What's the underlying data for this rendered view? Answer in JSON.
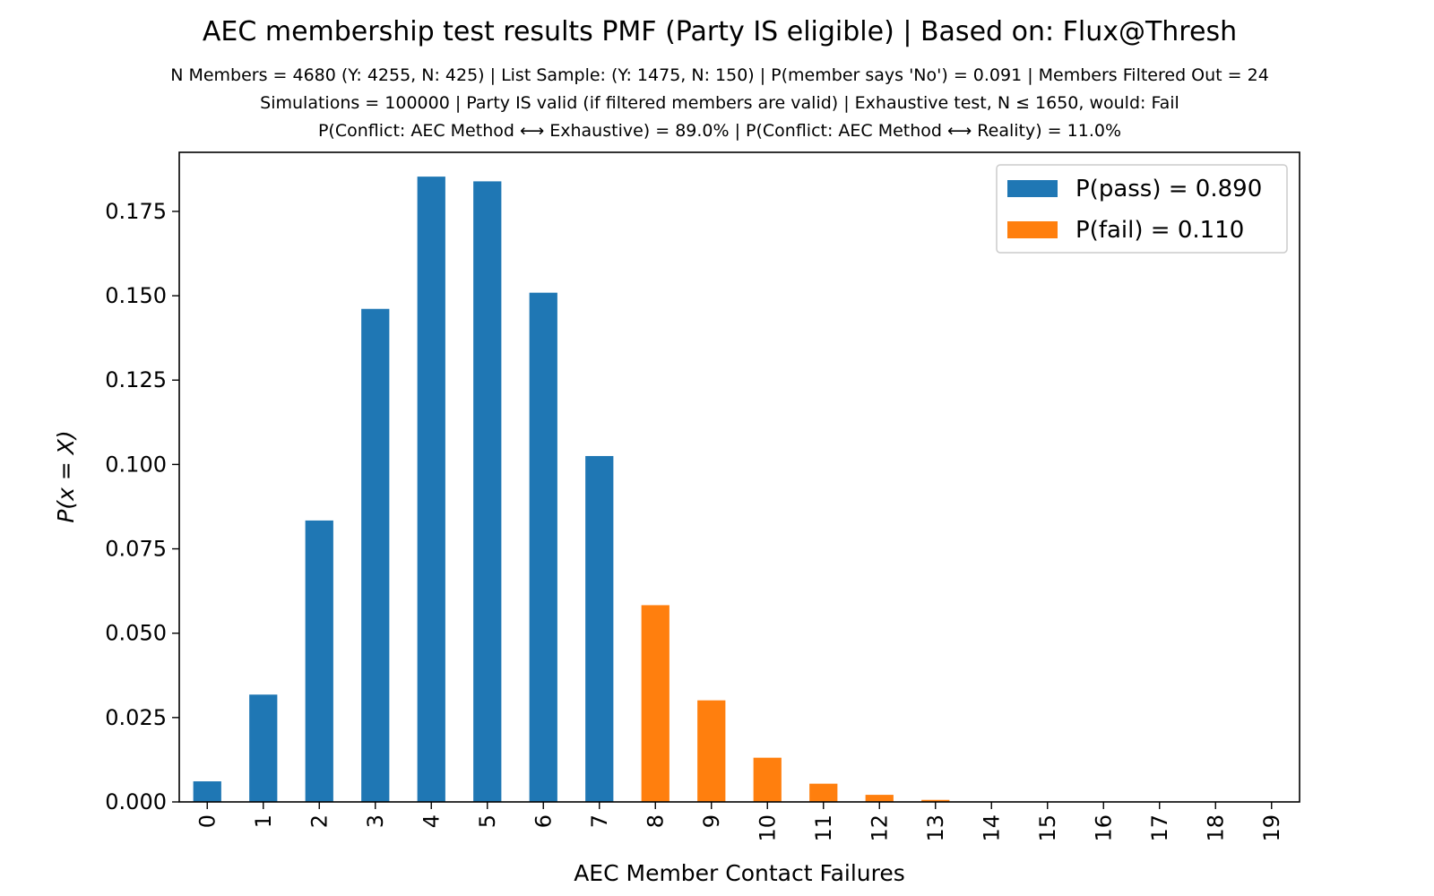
{
  "chart_data": {
    "type": "bar",
    "title": "AEC membership test results PMF (Party IS eligible) | Based on: Flux@Thresh",
    "subtitle_lines": [
      "N Members = 4680 (Y: 4255, N: 425) | List Sample: (Y: 1475, N: 150) | P(member says 'No') = 0.091 | Members Filtered Out = 24",
      "Simulations = 100000 | Party IS valid (if filtered members are valid) | Exhaustive test, N ≤ 1650, would: Fail",
      "P(Conflict: AEC Method ⟷ Exhaustive) = 89.0% | P(Conflict: AEC Method ⟷ Reality) = 11.0%"
    ],
    "xlabel": "AEC Member Contact Failures",
    "ylabel": "P(x = X)",
    "categories": [
      "0",
      "1",
      "2",
      "3",
      "4",
      "5",
      "6",
      "7",
      "8",
      "9",
      "10",
      "11",
      "12",
      "13",
      "14",
      "15",
      "16",
      "17",
      "18",
      "19"
    ],
    "values": [
      0.0061,
      0.0318,
      0.0834,
      0.1461,
      0.1853,
      0.1839,
      0.1509,
      0.1025,
      0.0583,
      0.0301,
      0.0131,
      0.0054,
      0.0021,
      0.0006,
      0.0001,
      0.0,
      0.0,
      0.0,
      0.0,
      0.0
    ],
    "bar_series": [
      "pass",
      "pass",
      "pass",
      "pass",
      "pass",
      "pass",
      "pass",
      "pass",
      "fail",
      "fail",
      "fail",
      "fail",
      "fail",
      "fail",
      "fail",
      "fail",
      "fail",
      "fail",
      "fail",
      "fail"
    ],
    "ylim": [
      0,
      0.1925
    ],
    "yticks": [
      "0.000",
      "0.025",
      "0.050",
      "0.075",
      "0.100",
      "0.125",
      "0.150",
      "0.175"
    ],
    "ytick_values": [
      0,
      0.025,
      0.05,
      0.075,
      0.1,
      0.125,
      0.15,
      0.175
    ],
    "series": [
      {
        "name": "P(pass) = 0.890",
        "color": "#1f77b4"
      },
      {
        "name": "P(fail) = 0.110",
        "color": "#ff7f0e"
      }
    ],
    "legend_position": "upper right",
    "grid": false
  }
}
